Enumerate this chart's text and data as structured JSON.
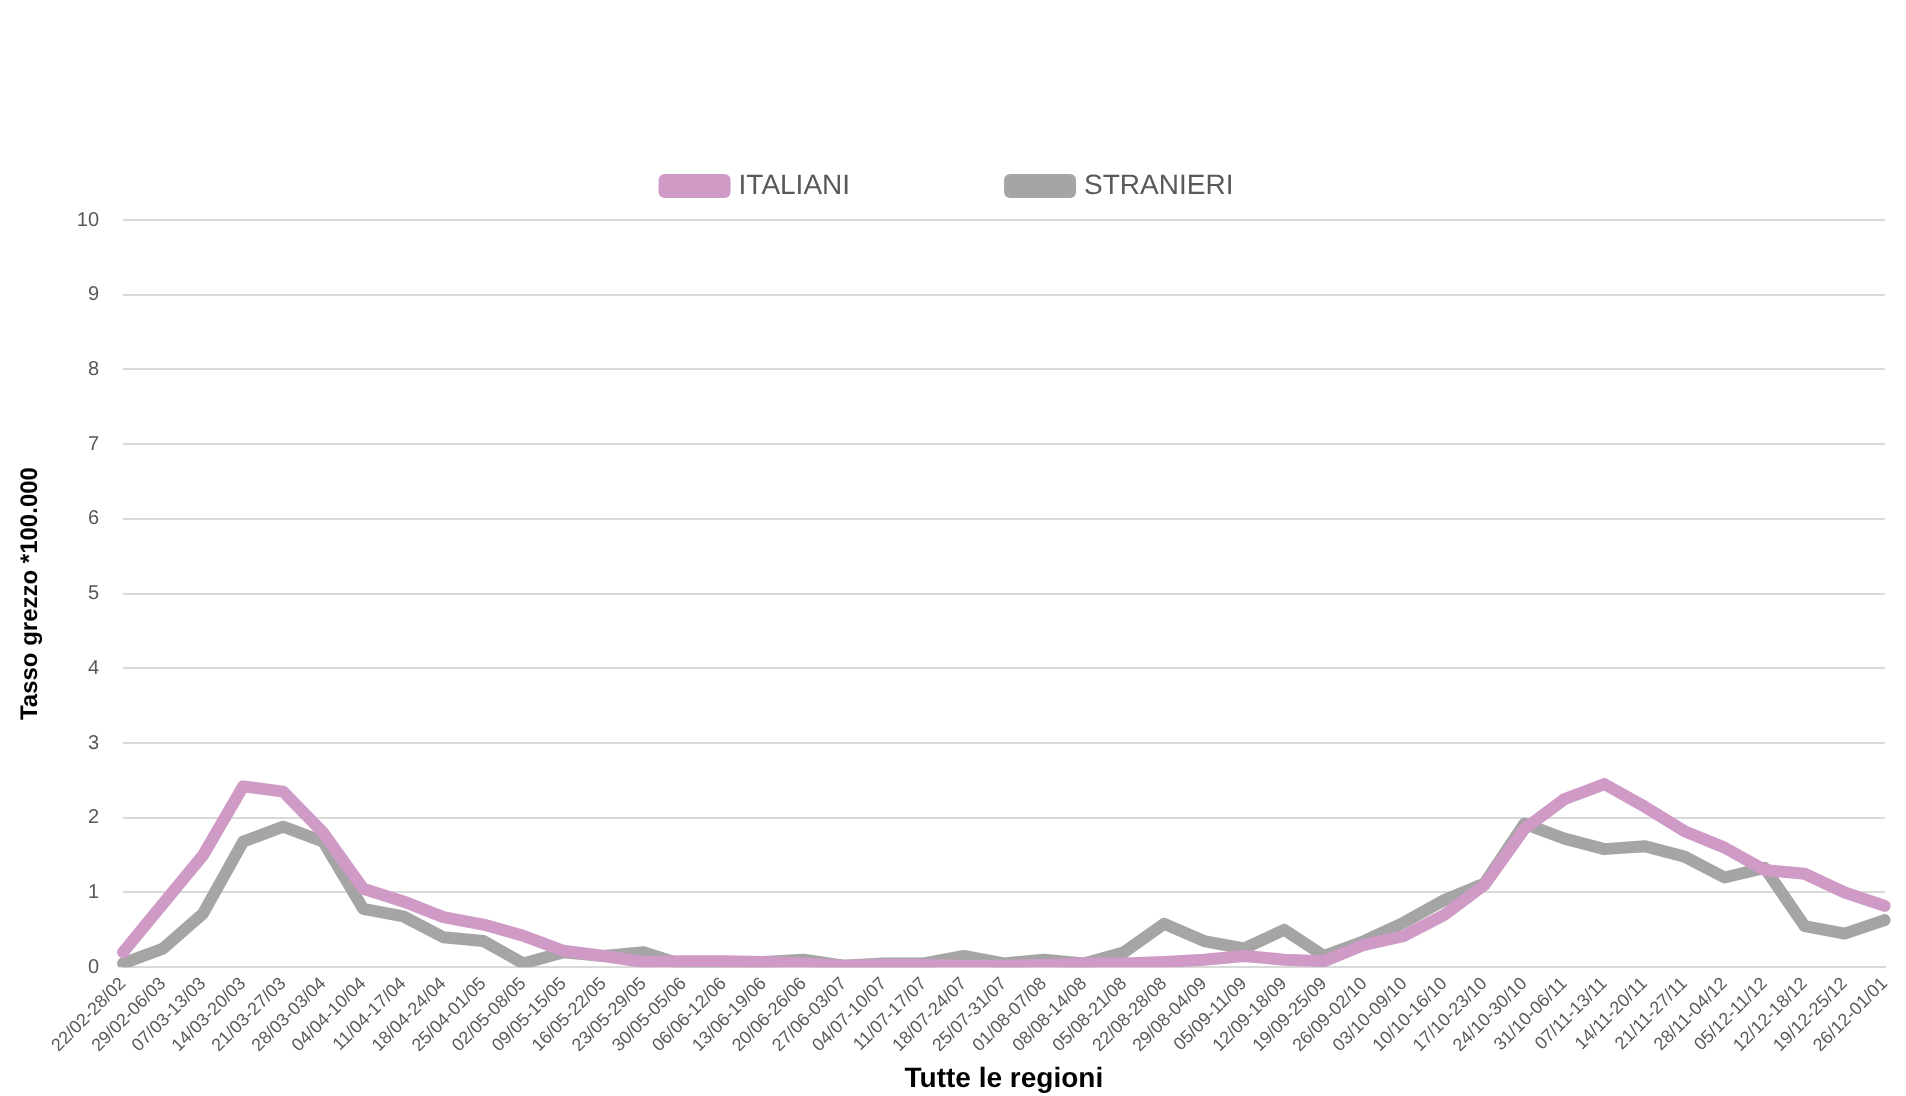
{
  "chart_data": {
    "type": "line",
    "xlabel": "Tutte le regioni",
    "ylabel": "Tasso grezzo *100.000",
    "categories": [
      "22/02-28/02",
      "29/02-06/03",
      "07/03-13/03",
      "14/03-20/03",
      "21/03-27/03",
      "28/03-03/04",
      "04/04-10/04",
      "11/04-17/04",
      "18/04-24/04",
      "25/04-01/05",
      "02/05-08/05",
      "09/05-15/05",
      "16/05-22/05",
      "23/05-29/05",
      "30/05-05/06",
      "06/06-12/06",
      "13/06-19/06",
      "20/06-26/06",
      "27/06-03/07",
      "04/07-10/07",
      "11/07-17/07",
      "18/07-24/07",
      "25/07-31/07",
      "01/08-07/08",
      "08/08-14/08",
      "05/08-21/08",
      "22/08-28/08",
      "29/08-04/09",
      "05/09-11/09",
      "12/09-18/09",
      "19/09-25/09",
      "26/09-02/10",
      "03/10-09/10",
      "10/10-16/10",
      "17/10-23/10",
      "24/10-30/10",
      "31/10-06/11",
      "07/11-13/11",
      "14/11-20/11",
      "21/11-27/11",
      "28/11-04/12",
      "05/12-11/12",
      "12/12-18/12",
      "19/12-25/12",
      "26/12-01/01"
    ],
    "series": [
      {
        "name": "ITALIANI",
        "color": "#d09ac6",
        "values": [
          0.2,
          0.85,
          1.5,
          2.42,
          2.35,
          1.8,
          1.05,
          0.88,
          0.67,
          0.57,
          0.42,
          0.22,
          0.15,
          0.07,
          0.08,
          0.08,
          0.07,
          0.05,
          0.02,
          0.03,
          0.03,
          0.02,
          0.02,
          0.03,
          0.05,
          0.05,
          0.07,
          0.1,
          0.15,
          0.1,
          0.08,
          0.3,
          0.42,
          0.7,
          1.1,
          1.85,
          2.25,
          2.45,
          2.15,
          1.82,
          1.6,
          1.3,
          1.25,
          1.0,
          0.82
        ]
      },
      {
        "name": "STRANIERI",
        "color": "#a5a5a5",
        "values": [
          0.05,
          0.25,
          0.72,
          1.68,
          1.88,
          1.68,
          0.78,
          0.68,
          0.4,
          0.35,
          0.05,
          0.2,
          0.15,
          0.2,
          0.03,
          0.05,
          0.07,
          0.1,
          0.02,
          0.05,
          0.05,
          0.15,
          0.05,
          0.1,
          0.05,
          0.2,
          0.58,
          0.35,
          0.25,
          0.5,
          0.15,
          0.35,
          0.6,
          0.9,
          1.12,
          1.92,
          1.72,
          1.58,
          1.62,
          1.48,
          1.2,
          1.33,
          0.55,
          0.45,
          0.63
        ]
      }
    ],
    "ylim": [
      0,
      10
    ],
    "yticks": [
      0,
      1,
      2,
      3,
      4,
      5,
      6,
      7,
      8,
      9,
      10
    ],
    "grid": "y",
    "legend": "top",
    "marker": "none",
    "line_style": "solid"
  }
}
